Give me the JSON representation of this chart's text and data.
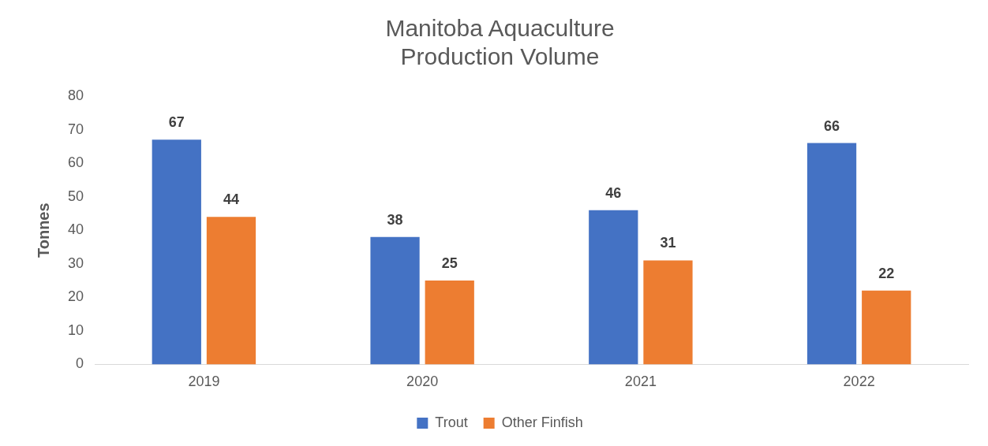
{
  "chart_data": {
    "type": "bar",
    "title": "Manitoba Aquaculture Production Volume",
    "ylabel": "Tonnes",
    "categories": [
      "2019",
      "2020",
      "2021",
      "2022"
    ],
    "series": [
      {
        "name": "Trout",
        "color": "#4472c4",
        "values": [
          67,
          38,
          46,
          66
        ]
      },
      {
        "name": "Other Finfish",
        "color": "#ed7d31",
        "values": [
          44,
          25,
          31,
          22
        ]
      }
    ],
    "ylim": [
      0,
      80
    ],
    "yticks": [
      0,
      10,
      20,
      30,
      40,
      50,
      60,
      70,
      80
    ],
    "grid": false,
    "legend": "bottom",
    "data_labels": true
  }
}
